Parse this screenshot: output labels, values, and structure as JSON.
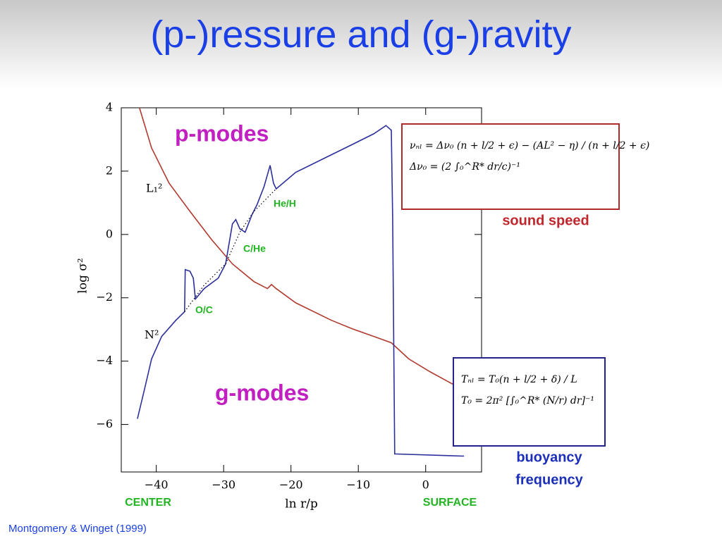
{
  "slide": {
    "title": "(p-)ressure and (g-)ravity",
    "citation": "Montgomery & Winget (1999)"
  },
  "chart_data": {
    "type": "line",
    "xlabel": "ln r/p",
    "ylabel": "log σ²",
    "xlim": [
      -45.2,
      8.3
    ],
    "ylim": [
      -7.5,
      4
    ],
    "xticks": [
      {
        "value": -40,
        "label": "−40"
      },
      {
        "value": -30,
        "label": "−30"
      },
      {
        "value": -20,
        "label": "−20"
      },
      {
        "value": -10,
        "label": "−10"
      },
      0
    ],
    "yticks": [
      4,
      2,
      0,
      {
        "value": -2,
        "label": "−2"
      },
      {
        "value": -4,
        "label": "−4"
      },
      {
        "value": -6,
        "label": "−6"
      }
    ],
    "series": [
      {
        "name": "L₁²",
        "color": "#b03a2e",
        "x": [
          -42.5,
          -40.7,
          -38.1,
          -35.0,
          -31.8,
          -28.7,
          -25.5,
          -23.5,
          -22.9,
          -22.2,
          -19.3,
          -14.0,
          -10.9,
          -7.7,
          -5.1,
          -2.5,
          0.6,
          4.3
        ],
        "values": [
          4.0,
          2.73,
          1.62,
          0.73,
          -0.16,
          -0.93,
          -1.49,
          -1.71,
          -1.58,
          -1.71,
          -2.16,
          -2.71,
          -2.98,
          -3.22,
          -3.42,
          -3.93,
          -4.33,
          -4.76
        ]
      },
      {
        "name": "N²",
        "color": "#2b2f9a",
        "x": [
          -42.8,
          -41.8,
          -40.7,
          -39.2,
          -37.1,
          -35.8,
          -35.7,
          -35.0,
          -34.5,
          -34.2,
          -32.9,
          -30.8,
          -29.7,
          -28.7,
          -28.2,
          -27.6,
          -26.8,
          -25.8,
          -25.0,
          -24.0,
          -23.1,
          -22.6,
          -22.2,
          -19.3,
          -15.1,
          -10.9,
          -7.7,
          -5.9,
          -5.1,
          -4.9,
          -4.6,
          5.7
        ],
        "values": [
          -5.82,
          -4.93,
          -3.93,
          -3.22,
          -2.71,
          -2.44,
          -1.11,
          -1.16,
          -1.38,
          -2.04,
          -1.71,
          -1.38,
          -0.93,
          0.33,
          0.47,
          0.18,
          0.07,
          0.62,
          0.96,
          1.51,
          2.18,
          1.62,
          1.44,
          1.96,
          2.4,
          2.84,
          3.18,
          3.44,
          3.29,
          0.51,
          -6.93,
          -7.0
        ]
      },
      {
        "color": "#000000",
        "dash": "dotted",
        "x": [
          -35.8,
          -32.9,
          -29.7,
          -27.6,
          -25.5,
          -22.2
        ],
        "values": [
          -2.44,
          -1.6,
          -0.93,
          0.07,
          0.73,
          1.44
        ]
      }
    ],
    "annotations": [
      {
        "text": "p-modes",
        "color": "#c21fc2"
      },
      {
        "text": "g-modes",
        "color": "#c21fc2"
      },
      {
        "text": "O/C",
        "color": "#22b422"
      },
      {
        "text": "C/He",
        "color": "#22b422"
      },
      {
        "text": "He/H",
        "color": "#22b422"
      },
      {
        "text": "CENTER",
        "color": "#22b422"
      },
      {
        "text": "SURFACE",
        "color": "#22b422"
      },
      {
        "text": "sound speed",
        "color": "#c0272d"
      },
      {
        "text": "buoyancy",
        "color": "#1c2fb8"
      },
      {
        "text": "frequency",
        "color": "#1c2fb8"
      }
    ],
    "formulas": [
      "νₙₗ = Δν₀ (n + l/2 + ϵ) − (AL² − η) / (n + l/2 + ϵ)",
      "Δν₀ = (2 ∫₀^R* dr/c)⁻¹",
      "Tₙₗ = T₀(n + l/2 + δ) / L",
      "T₀ = 2π² [∫₀^R* (N/r) dr]⁻¹"
    ]
  }
}
